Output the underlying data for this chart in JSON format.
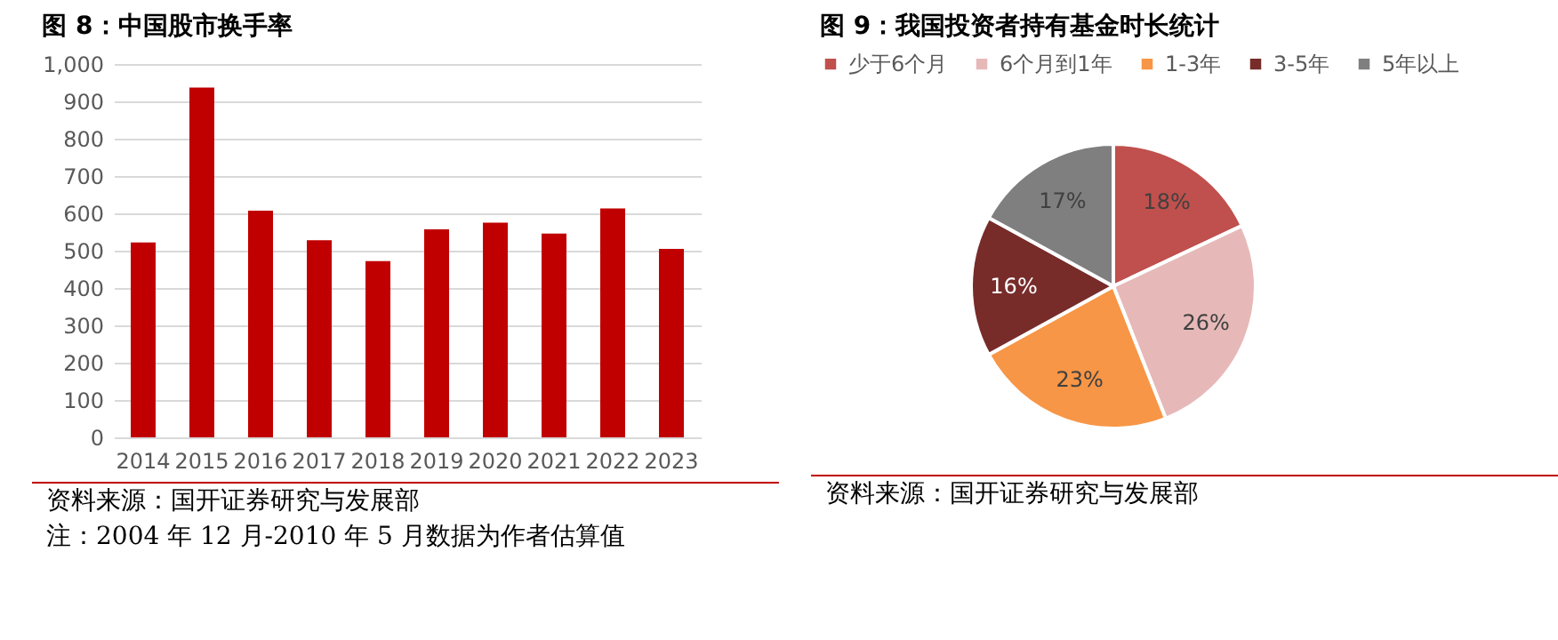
{
  "chart_data": [
    {
      "type": "bar",
      "title": "图 8：中国股市换手率",
      "categories": [
        "2014",
        "2015",
        "2016",
        "2017",
        "2018",
        "2019",
        "2020",
        "2021",
        "2022",
        "2023"
      ],
      "values": [
        522,
        937,
        607,
        528,
        472,
        557,
        575,
        546,
        613,
        505
      ],
      "color": "#c00000",
      "ylim": [
        0,
        1000
      ],
      "yticks": [
        0,
        {
          "value": 100,
          "label": "100"
        },
        200,
        300,
        400,
        500,
        600,
        700,
        800,
        900,
        {
          "value": 1000,
          "label": "1,000"
        }
      ],
      "grid": "y",
      "annotations": [
        "资料来源：国开证券研究与发展部",
        "注：2004 年 12 月-2010 年 5 月数据为作者估算值"
      ]
    },
    {
      "type": "pie",
      "title": "图 9：我国投资者持有基金时长统计",
      "categories": [
        "少于6个月",
        "6个月到1年",
        "1-3年",
        "3-5年",
        "5年以上"
      ],
      "values": [
        18,
        26,
        23,
        16,
        17
      ],
      "colors": [
        "#c0504d",
        "#e6b9b8",
        "#f79646",
        "#772c2a",
        "#7f7f7f"
      ],
      "legend": "top",
      "value_labels": [
        "18%",
        "26%",
        "23%",
        "16%",
        "17%"
      ],
      "annotations": [
        "资料来源：国开证券研究与发展部"
      ]
    }
  ]
}
